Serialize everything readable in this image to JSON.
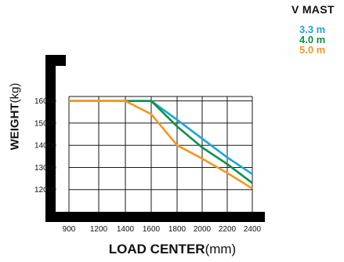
{
  "chart_data": {
    "type": "line",
    "xlabel_bold": "LOAD CENTER",
    "xlabel_unit": "(mm)",
    "ylabel_bold": "WEIGHT",
    "ylabel_unit": "(kg)",
    "legend_title": "V  MAST",
    "x_ticks": [
      900,
      1200,
      1400,
      1600,
      1800,
      2000,
      2200,
      2400
    ],
    "y_ticks": [
      12000,
      13000,
      14000,
      15000,
      16000
    ],
    "x_tick_labels": [
      "900",
      "1200",
      "1400",
      "1600",
      "1800",
      "2000",
      "2200",
      "2400"
    ],
    "y_tick_labels": [
      "12000",
      "13000",
      "14000",
      "15000",
      "16000"
    ],
    "ylim": [
      11000,
      16200
    ],
    "series": [
      {
        "name": "3.3 m",
        "color": "#1ba5dc",
        "points": [
          [
            900,
            16000
          ],
          [
            1600,
            16000
          ],
          [
            1800,
            15150
          ],
          [
            2000,
            14300
          ],
          [
            2200,
            13450
          ],
          [
            2400,
            12700
          ]
        ]
      },
      {
        "name": "4.0 m",
        "color": "#10914a",
        "points": [
          [
            900,
            16000
          ],
          [
            1600,
            16000
          ],
          [
            1800,
            14850
          ],
          [
            2000,
            13900
          ],
          [
            2200,
            13150
          ],
          [
            2400,
            12300
          ]
        ]
      },
      {
        "name": "5.0 m",
        "color": "#f5961e",
        "points": [
          [
            900,
            16000
          ],
          [
            1400,
            16000
          ],
          [
            1600,
            15400
          ],
          [
            1800,
            14000
          ],
          [
            2000,
            13400
          ],
          [
            2200,
            12750
          ],
          [
            2400,
            12050
          ]
        ]
      }
    ]
  }
}
